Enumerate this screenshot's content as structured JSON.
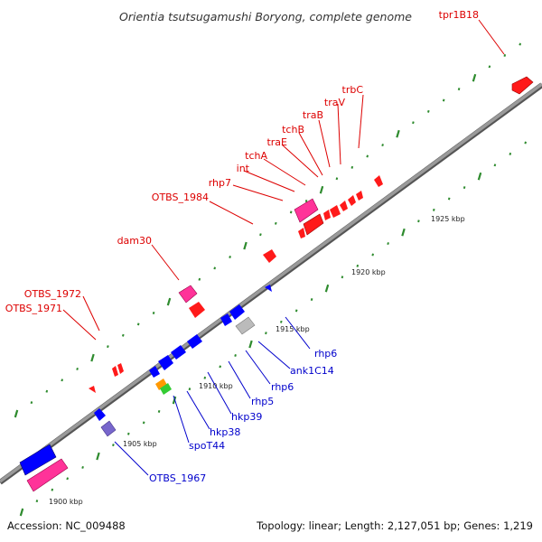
{
  "title": "Orientia tsutsugamushi Boryong, complete genome",
  "footer": {
    "accession": "Accession: NC_009488",
    "summary": "Topology: linear; Length: 2,127,051 bp; Genes: 1,219"
  },
  "colors": {
    "backbone": "#8a8a8a",
    "tick": "#2e8b2e",
    "forward_gene": "#ff0000",
    "reverse_gene": "#0000ff",
    "pink_gene": "#ff3399",
    "gray_gene": "#bbbbbb",
    "purple_gene": "#7766cc",
    "orange_gene": "#ff9900",
    "green_gene": "#33cc33",
    "red_label": "#dd0000",
    "blue_label": "#0000cc"
  },
  "scale_labels": [
    {
      "text": "1900 kbp"
    },
    {
      "text": "1905 kbp"
    },
    {
      "text": "1910 kbp"
    },
    {
      "text": "1915 kbp"
    },
    {
      "text": "1920 kbp"
    },
    {
      "text": "1925 kbp"
    }
  ],
  "top_labels": [
    {
      "text": "tpr1B18"
    },
    {
      "text": "trbC"
    },
    {
      "text": "traV"
    },
    {
      "text": "traB"
    },
    {
      "text": "tchB"
    },
    {
      "text": "traE"
    },
    {
      "text": "tchA"
    },
    {
      "text": "int"
    },
    {
      "text": "rhp7"
    },
    {
      "text": "OTBS_1984"
    },
    {
      "text": "dam30"
    },
    {
      "text": "OTBS_1972"
    },
    {
      "text": "OTBS_1971"
    }
  ],
  "bottom_labels": [
    {
      "text": "rhp6"
    },
    {
      "text": "ank1C14"
    },
    {
      "text": "rhp6"
    },
    {
      "text": "rhp5"
    },
    {
      "text": "hkp39"
    },
    {
      "text": "hkp38"
    },
    {
      "text": "spoT44"
    },
    {
      "text": "OTBS_1967"
    }
  ]
}
